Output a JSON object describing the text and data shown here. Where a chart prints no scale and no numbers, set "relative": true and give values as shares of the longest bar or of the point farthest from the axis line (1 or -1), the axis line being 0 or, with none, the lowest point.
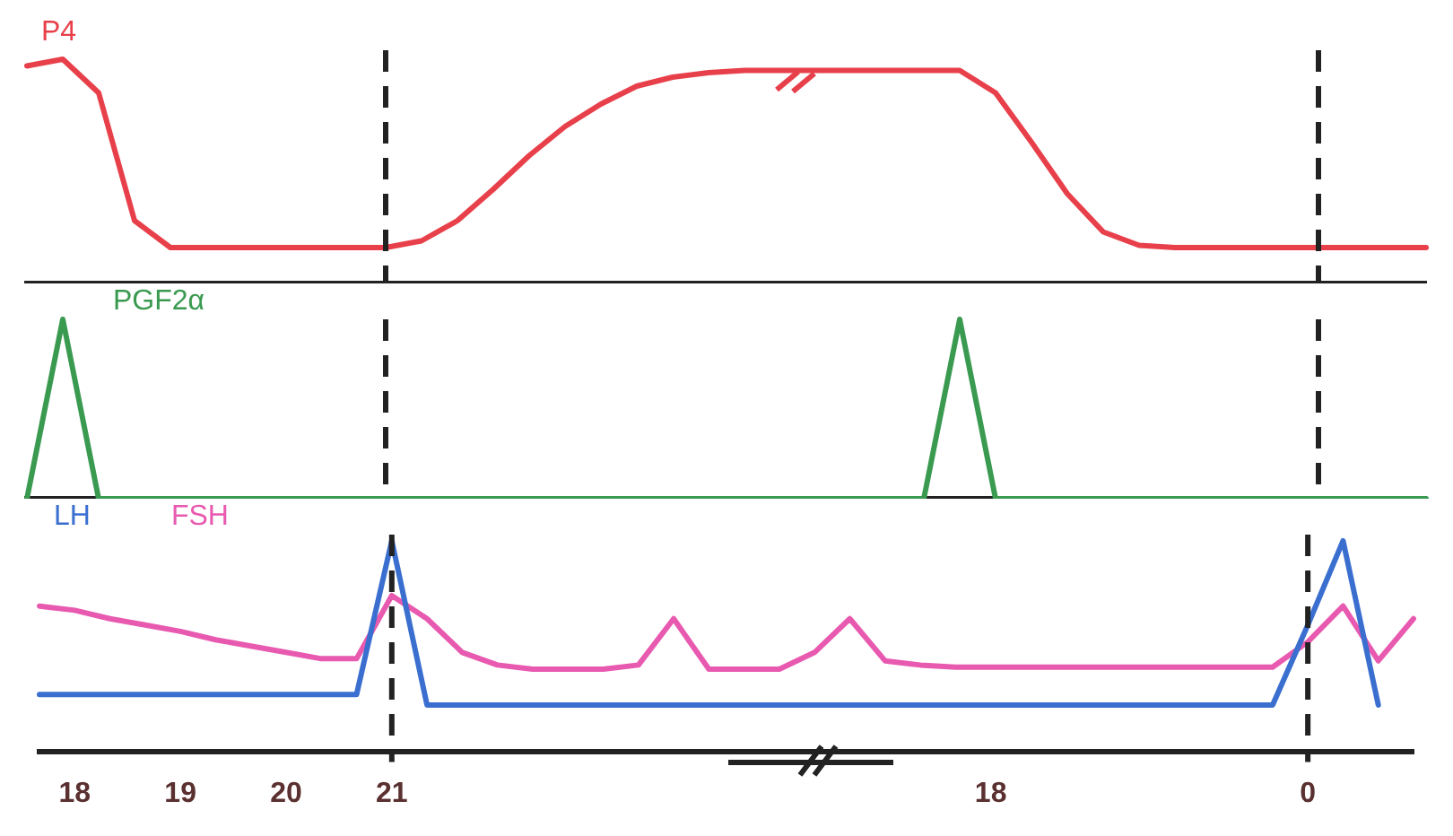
{
  "chart_data": [
    {
      "type": "line",
      "relative": true,
      "marker": "none",
      "tick_labels": false,
      "line_style": "solid",
      "categories": [
        null,
        null,
        null,
        null,
        null,
        null,
        null,
        null,
        null,
        null,
        null,
        null,
        null,
        null,
        null,
        null,
        null,
        null,
        null,
        null,
        null,
        null,
        null,
        null,
        null,
        null,
        null,
        null,
        null,
        null,
        null,
        null,
        null,
        null,
        null,
        null,
        null,
        null,
        null,
        null
      ],
      "series": [
        {
          "name": "P4",
          "color": "#e8404a",
          "values": [
            0.97,
            1,
            0.85,
            0.28,
            0.16,
            0.16,
            0.16,
            0.16,
            0.16,
            0.16,
            0.16,
            0.19,
            0.28,
            0.42,
            0.57,
            0.7,
            0.8,
            0.88,
            0.92,
            0.94,
            0.95,
            0.95,
            0.95,
            0.95,
            0.95,
            0.95,
            0.95,
            0.85,
            0.63,
            0.4,
            0.23,
            0.17,
            0.16,
            0.16,
            0.16,
            0.16,
            0.16,
            0.16,
            0.16,
            0.16
          ]
        }
      ]
    },
    {
      "type": "line",
      "relative": true,
      "marker": "none",
      "tick_labels": false,
      "line_style": "solid",
      "categories": [
        null,
        null,
        null,
        null,
        null,
        null,
        null,
        null,
        null,
        null,
        null,
        null,
        null,
        null,
        null,
        null,
        null,
        null,
        null,
        null,
        null,
        null,
        null,
        null,
        null,
        null,
        null,
        null,
        null,
        null,
        null,
        null,
        null,
        null,
        null,
        null,
        null,
        null,
        null,
        null
      ],
      "series": [
        {
          "name": "PGF2α",
          "color": "#3a9a50",
          "values": [
            0,
            1,
            0,
            0,
            0,
            0,
            0,
            0,
            0,
            0,
            0,
            0,
            0,
            0,
            0,
            0,
            0,
            0,
            0,
            0,
            0,
            0,
            0,
            0,
            0,
            0,
            1,
            0,
            0,
            0,
            0,
            0,
            0,
            0,
            0,
            0,
            0,
            0,
            0,
            0
          ]
        }
      ]
    },
    {
      "type": "line",
      "relative": true,
      "marker": "none",
      "tick_labels": "x",
      "line_style": "solid",
      "categories": [
        null,
        "18",
        null,
        null,
        "19",
        null,
        null,
        "20",
        null,
        null,
        "21",
        null,
        null,
        null,
        null,
        null,
        null,
        null,
        null,
        null,
        null,
        null,
        null,
        null,
        null,
        null,
        null,
        "18",
        null,
        null,
        null,
        null,
        null,
        null,
        null,
        null,
        "0",
        null,
        null,
        null
      ],
      "series": [
        {
          "name": "LH",
          "color": "#3a6fd0",
          "values": [
            0.27,
            0.27,
            0.27,
            0.27,
            0.27,
            0.27,
            0.27,
            0.27,
            0.27,
            0.27,
            1,
            0.22,
            0.22,
            0.22,
            0.22,
            0.22,
            0.22,
            0.22,
            0.22,
            0.22,
            0.22,
            0.22,
            0.22,
            0.22,
            0.22,
            0.22,
            0.22,
            0.22,
            0.22,
            0.22,
            0.22,
            0.22,
            0.22,
            0.22,
            0.22,
            0.22,
            0.6,
            1,
            0.22,
            null
          ]
        },
        {
          "name": "FSH",
          "color": "#e85ab0",
          "values": [
            0.69,
            0.67,
            0.63,
            0.6,
            0.57,
            0.53,
            0.5,
            0.47,
            0.44,
            0.44,
            0.74,
            0.63,
            0.47,
            0.41,
            0.39,
            0.39,
            0.39,
            0.41,
            0.63,
            0.39,
            0.39,
            0.39,
            0.47,
            0.63,
            0.43,
            0.41,
            0.4,
            0.4,
            0.4,
            0.4,
            0.4,
            0.4,
            0.4,
            0.4,
            0.4,
            0.4,
            0.52,
            0.69,
            0.43,
            0.63
          ]
        }
      ],
      "ref_lines": [
        {
          "axis": "x",
          "value": "21",
          "color": "#222222",
          "line_style": "dashed"
        },
        {
          "axis": "x",
          "value": "0",
          "color": "#222222",
          "line_style": "dashed"
        }
      ]
    }
  ]
}
